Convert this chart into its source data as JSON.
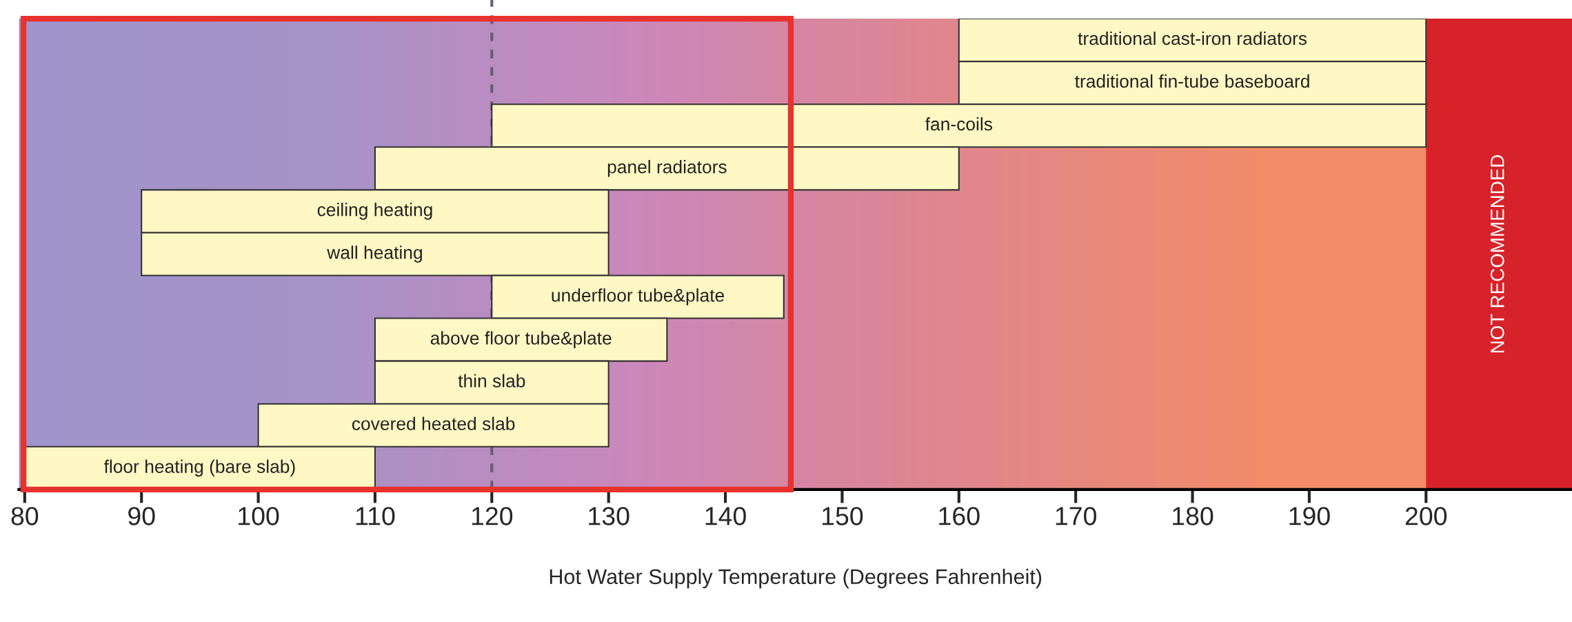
{
  "chart_data": {
    "type": "bar",
    "orientation": "horizontal",
    "categories": [
      "traditional cast-iron radiators",
      "traditional fin-tube baseboard",
      "fan-coils",
      "panel radiators",
      "ceiling heating",
      "wall heating",
      "underfloor tube&plate",
      "above floor tube&plate",
      "thin slab",
      "covered heated slab",
      "floor heating (bare slab)"
    ],
    "base": [
      160,
      160,
      120,
      110,
      90,
      90,
      120,
      110,
      110,
      100,
      80
    ],
    "values": [
      40,
      40,
      80,
      50,
      40,
      40,
      25,
      25,
      20,
      30,
      30
    ],
    "color": "#fff8c4",
    "xlim": [
      79.5,
      212.5
    ],
    "xticks": [
      80,
      90,
      100,
      110,
      120,
      130,
      140,
      150,
      160,
      170,
      180,
      190,
      200
    ],
    "xlabel": "Hot Water Supply Temperature (Degrees Fahrenheit)",
    "tick_labels": "x",
    "grid": false,
    "legend": false,
    "ref_lines": [
      {
        "axis": "x",
        "value": 120,
        "color": "#6e5a78",
        "line_style": "dashed"
      }
    ],
    "bands": [
      {
        "axis": "x",
        "from": 200,
        "to": 212.5,
        "label": "NOT RECOMMENDED",
        "color": "#d8222a"
      }
    ]
  }
}
